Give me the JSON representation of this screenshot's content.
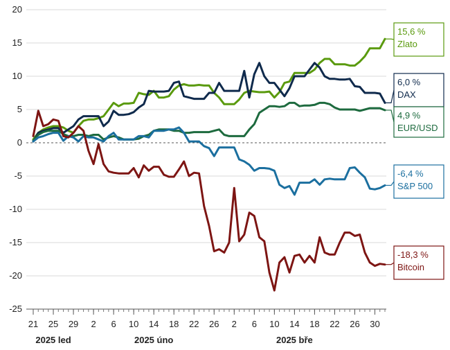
{
  "chart_data": {
    "type": "line",
    "title": "",
    "xlabel": "",
    "ylabel": "",
    "ylim": [
      -25,
      20
    ],
    "yticks": [
      20,
      15,
      10,
      5,
      0,
      -5,
      -10,
      -15,
      -20,
      -25
    ],
    "xlim": [
      "2025-01-21",
      "2025-04-01"
    ],
    "grid": "horizontal",
    "zero_line": "dashed",
    "legend": "end-of-line labels on the right",
    "x_tick_labels": [
      "21",
      "25",
      "29",
      "2",
      "6",
      "10",
      "14",
      "18",
      "22",
      "26",
      "2",
      "6",
      "10",
      "14",
      "18",
      "22",
      "26",
      "30"
    ],
    "x_ticks": [
      "2025-01-21",
      "2025-01-25",
      "2025-01-29",
      "2025-02-02",
      "2025-02-06",
      "2025-02-10",
      "2025-02-14",
      "2025-02-18",
      "2025-02-22",
      "2025-02-26",
      "2025-03-02",
      "2025-03-06",
      "2025-03-10",
      "2025-03-14",
      "2025-03-18",
      "2025-03-22",
      "2025-03-26",
      "2025-03-30"
    ],
    "month_labels": [
      {
        "text": "2025 led",
        "date": "2025-01-25"
      },
      {
        "text": "2025 úno",
        "date": "2025-02-14"
      },
      {
        "text": "2025 bře",
        "date": "2025-03-14"
      }
    ],
    "series": [
      {
        "name": "Zlato",
        "end_label": "15,6 %",
        "color": "#5a9a0e",
        "x": [
          "2025-01-21",
          "2025-01-22",
          "2025-01-23",
          "2025-01-24",
          "2025-01-25",
          "2025-01-26",
          "2025-01-27",
          "2025-01-28",
          "2025-01-29",
          "2025-01-30",
          "2025-01-31",
          "2025-02-01",
          "2025-02-02",
          "2025-02-03",
          "2025-02-04",
          "2025-02-05",
          "2025-02-06",
          "2025-02-07",
          "2025-02-08",
          "2025-02-09",
          "2025-02-10",
          "2025-02-11",
          "2025-02-12",
          "2025-02-13",
          "2025-02-14",
          "2025-02-15",
          "2025-02-16",
          "2025-02-17",
          "2025-02-18",
          "2025-02-19",
          "2025-02-20",
          "2025-02-21",
          "2025-02-22",
          "2025-02-23",
          "2025-02-24",
          "2025-02-25",
          "2025-02-26",
          "2025-02-27",
          "2025-02-28",
          "2025-03-01",
          "2025-03-02",
          "2025-03-03",
          "2025-03-04",
          "2025-03-05",
          "2025-03-06",
          "2025-03-07",
          "2025-03-08",
          "2025-03-09",
          "2025-03-10",
          "2025-03-11",
          "2025-03-12",
          "2025-03-13",
          "2025-03-14",
          "2025-03-15",
          "2025-03-16",
          "2025-03-17",
          "2025-03-18",
          "2025-03-19",
          "2025-03-20",
          "2025-03-21",
          "2025-03-22",
          "2025-03-23",
          "2025-03-24",
          "2025-03-25",
          "2025-03-26",
          "2025-03-27",
          "2025-03-28",
          "2025-03-29",
          "2025-03-30",
          "2025-03-31",
          "2025-04-01"
        ],
        "y": [
          0.5,
          1.5,
          2.0,
          2.3,
          2.5,
          2.5,
          2.3,
          1.8,
          1.5,
          2.5,
          3.3,
          3.5,
          3.5,
          3.7,
          4.0,
          5.0,
          6.0,
          5.5,
          5.9,
          5.9,
          6.0,
          7.5,
          7.3,
          7.2,
          7.8,
          6.8,
          6.8,
          7.0,
          8.0,
          8.6,
          8.8,
          8.6,
          8.6,
          8.7,
          8.6,
          8.6,
          7.5,
          6.8,
          5.8,
          5.8,
          5.8,
          6.5,
          7.5,
          7.8,
          7.7,
          7.6,
          7.6,
          7.7,
          6.8,
          7.6,
          9.0,
          9.2,
          10.5,
          10.5,
          10.5,
          10.5,
          11.0,
          12.0,
          12.6,
          12.6,
          11.8,
          11.8,
          11.8,
          11.6,
          11.6,
          12.2,
          13.0,
          14.2,
          14.2,
          14.2,
          15.6
        ]
      },
      {
        "name": "DAX",
        "end_label": "6,0 %",
        "color": "#0f2a4c",
        "x": [
          "2025-01-21",
          "2025-01-22",
          "2025-01-23",
          "2025-01-24",
          "2025-01-25",
          "2025-01-26",
          "2025-01-27",
          "2025-01-28",
          "2025-01-29",
          "2025-01-30",
          "2025-01-31",
          "2025-02-01",
          "2025-02-02",
          "2025-02-03",
          "2025-02-04",
          "2025-02-05",
          "2025-02-06",
          "2025-02-07",
          "2025-02-08",
          "2025-02-09",
          "2025-02-10",
          "2025-02-11",
          "2025-02-12",
          "2025-02-13",
          "2025-02-14",
          "2025-02-15",
          "2025-02-16",
          "2025-02-17",
          "2025-02-18",
          "2025-02-19",
          "2025-02-20",
          "2025-02-21",
          "2025-02-22",
          "2025-02-23",
          "2025-02-24",
          "2025-02-25",
          "2025-02-26",
          "2025-02-27",
          "2025-02-28",
          "2025-03-01",
          "2025-03-02",
          "2025-03-03",
          "2025-03-04",
          "2025-03-05",
          "2025-03-06",
          "2025-03-07",
          "2025-03-08",
          "2025-03-09",
          "2025-03-10",
          "2025-03-11",
          "2025-03-12",
          "2025-03-13",
          "2025-03-14",
          "2025-03-15",
          "2025-03-16",
          "2025-03-17",
          "2025-03-18",
          "2025-03-19",
          "2025-03-20",
          "2025-03-21",
          "2025-03-22",
          "2025-03-23",
          "2025-03-24",
          "2025-03-25",
          "2025-03-26",
          "2025-03-27",
          "2025-03-28",
          "2025-03-29",
          "2025-03-30",
          "2025-03-31",
          "2025-04-01"
        ],
        "y": [
          0.2,
          1.5,
          1.8,
          2.0,
          2.2,
          2.2,
          1.5,
          2.0,
          2.5,
          3.5,
          4.0,
          4.0,
          4.0,
          4.0,
          2.5,
          3.2,
          4.8,
          4.2,
          4.2,
          4.3,
          4.6,
          5.3,
          5.8,
          7.8,
          7.7,
          7.7,
          7.7,
          7.8,
          9.0,
          9.2,
          7.0,
          6.8,
          6.6,
          6.6,
          6.6,
          7.5,
          7.5,
          9.0,
          7.8,
          7.8,
          7.8,
          7.8,
          10.8,
          6.8,
          10.3,
          12.0,
          10.0,
          9.0,
          9.0,
          8.0,
          7.0,
          8.2,
          10.0,
          10.0,
          10.0,
          11.0,
          12.0,
          11.3,
          10.0,
          9.6,
          9.6,
          9.5,
          9.5,
          9.6,
          8.5,
          8.4,
          7.5,
          7.5,
          7.5,
          7.4,
          6.0
        ]
      },
      {
        "name": "EUR/USD",
        "end_label": "4,9 %",
        "color": "#1d6a3e",
        "x": [
          "2025-01-21",
          "2025-01-22",
          "2025-01-23",
          "2025-01-24",
          "2025-01-25",
          "2025-01-26",
          "2025-01-27",
          "2025-01-28",
          "2025-01-29",
          "2025-01-30",
          "2025-01-31",
          "2025-02-01",
          "2025-02-02",
          "2025-02-03",
          "2025-02-04",
          "2025-02-05",
          "2025-02-06",
          "2025-02-07",
          "2025-02-08",
          "2025-02-09",
          "2025-02-10",
          "2025-02-11",
          "2025-02-12",
          "2025-02-13",
          "2025-02-14",
          "2025-02-15",
          "2025-02-16",
          "2025-02-17",
          "2025-02-18",
          "2025-02-19",
          "2025-02-20",
          "2025-02-21",
          "2025-02-22",
          "2025-02-23",
          "2025-02-24",
          "2025-02-25",
          "2025-02-26",
          "2025-02-27",
          "2025-02-28",
          "2025-03-01",
          "2025-03-02",
          "2025-03-03",
          "2025-03-04",
          "2025-03-05",
          "2025-03-06",
          "2025-03-07",
          "2025-03-08",
          "2025-03-09",
          "2025-03-10",
          "2025-03-11",
          "2025-03-12",
          "2025-03-13",
          "2025-03-14",
          "2025-03-15",
          "2025-03-16",
          "2025-03-17",
          "2025-03-18",
          "2025-03-19",
          "2025-03-20",
          "2025-03-21",
          "2025-03-22",
          "2025-03-23",
          "2025-03-24",
          "2025-03-25",
          "2025-03-26",
          "2025-03-27",
          "2025-03-28",
          "2025-03-29",
          "2025-03-30",
          "2025-03-31",
          "2025-04-01"
        ],
        "y": [
          0.3,
          1.2,
          1.6,
          1.8,
          1.8,
          1.8,
          1.3,
          1.0,
          1.0,
          1.2,
          1.2,
          1.0,
          1.2,
          1.2,
          0.5,
          0.8,
          1.0,
          0.8,
          0.5,
          0.5,
          0.5,
          0.6,
          1.0,
          1.2,
          1.8,
          2.0,
          2.0,
          2.0,
          1.8,
          1.8,
          1.5,
          1.5,
          1.6,
          1.6,
          1.6,
          1.6,
          1.8,
          2.0,
          1.2,
          1.0,
          1.0,
          1.0,
          1.0,
          2.0,
          2.8,
          4.5,
          5.0,
          5.5,
          5.5,
          5.4,
          5.5,
          6.0,
          6.0,
          5.5,
          5.6,
          5.6,
          5.7,
          6.0,
          6.0,
          5.8,
          5.3,
          5.0,
          5.0,
          5.0,
          5.0,
          4.8,
          5.0,
          5.2,
          5.2,
          5.2,
          4.9
        ]
      },
      {
        "name": "S&P 500",
        "end_label": "-6,4 %",
        "color": "#1b6f9f",
        "x": [
          "2025-01-21",
          "2025-01-22",
          "2025-01-23",
          "2025-01-24",
          "2025-01-25",
          "2025-01-26",
          "2025-01-27",
          "2025-01-28",
          "2025-01-29",
          "2025-01-30",
          "2025-01-31",
          "2025-02-01",
          "2025-02-02",
          "2025-02-03",
          "2025-02-04",
          "2025-02-05",
          "2025-02-06",
          "2025-02-07",
          "2025-02-08",
          "2025-02-09",
          "2025-02-10",
          "2025-02-11",
          "2025-02-12",
          "2025-02-13",
          "2025-02-14",
          "2025-02-15",
          "2025-02-16",
          "2025-02-17",
          "2025-02-18",
          "2025-02-19",
          "2025-02-20",
          "2025-02-21",
          "2025-02-22",
          "2025-02-23",
          "2025-02-24",
          "2025-02-25",
          "2025-02-26",
          "2025-02-27",
          "2025-02-28",
          "2025-03-01",
          "2025-03-02",
          "2025-03-03",
          "2025-03-04",
          "2025-03-05",
          "2025-03-06",
          "2025-03-07",
          "2025-03-08",
          "2025-03-09",
          "2025-03-10",
          "2025-03-11",
          "2025-03-12",
          "2025-03-13",
          "2025-03-14",
          "2025-03-15",
          "2025-03-16",
          "2025-03-17",
          "2025-03-18",
          "2025-03-19",
          "2025-03-20",
          "2025-03-21",
          "2025-03-22",
          "2025-03-23",
          "2025-03-24",
          "2025-03-25",
          "2025-03-26",
          "2025-03-27",
          "2025-03-28",
          "2025-03-29",
          "2025-03-30",
          "2025-03-31",
          "2025-04-01"
        ],
        "y": [
          0.2,
          0.8,
          1.0,
          1.3,
          1.5,
          1.5,
          0.3,
          1.0,
          0.8,
          0.2,
          1.0,
          0.8,
          0.8,
          0.5,
          0.2,
          1.0,
          1.5,
          0.5,
          0.5,
          0.5,
          0.5,
          1.0,
          1.0,
          0.8,
          1.8,
          1.8,
          1.8,
          2.0,
          2.0,
          2.3,
          1.5,
          0.2,
          0.2,
          0.2,
          -0.5,
          -0.8,
          -2.0,
          -0.7,
          -0.7,
          -0.7,
          -0.7,
          -2.5,
          -2.8,
          -3.3,
          -4.2,
          -3.8,
          -3.8,
          -3.9,
          -4.2,
          -6.3,
          -6.8,
          -6.5,
          -7.8,
          -6.0,
          -6.0,
          -6.0,
          -5.5,
          -6.3,
          -5.5,
          -5.4,
          -5.5,
          -5.5,
          -5.5,
          -3.8,
          -3.7,
          -4.5,
          -5.2,
          -6.9,
          -7.0,
          -6.8,
          -6.4
        ]
      },
      {
        "name": "Bitcoin",
        "end_label": "-18,3 %",
        "color": "#7d1513",
        "x": [
          "2025-01-21",
          "2025-01-22",
          "2025-01-23",
          "2025-01-24",
          "2025-01-25",
          "2025-01-26",
          "2025-01-27",
          "2025-01-28",
          "2025-01-29",
          "2025-01-30",
          "2025-01-31",
          "2025-02-01",
          "2025-02-02",
          "2025-02-03",
          "2025-02-04",
          "2025-02-05",
          "2025-02-06",
          "2025-02-07",
          "2025-02-08",
          "2025-02-09",
          "2025-02-10",
          "2025-02-11",
          "2025-02-12",
          "2025-02-13",
          "2025-02-14",
          "2025-02-15",
          "2025-02-16",
          "2025-02-17",
          "2025-02-18",
          "2025-02-19",
          "2025-02-20",
          "2025-02-21",
          "2025-02-22",
          "2025-02-23",
          "2025-02-24",
          "2025-02-25",
          "2025-02-26",
          "2025-02-27",
          "2025-02-28",
          "2025-03-01",
          "2025-03-02",
          "2025-03-03",
          "2025-03-04",
          "2025-03-05",
          "2025-03-06",
          "2025-03-07",
          "2025-03-08",
          "2025-03-09",
          "2025-03-10",
          "2025-03-11",
          "2025-03-12",
          "2025-03-13",
          "2025-03-14",
          "2025-03-15",
          "2025-03-16",
          "2025-03-17",
          "2025-03-18",
          "2025-03-19",
          "2025-03-20",
          "2025-03-21",
          "2025-03-22",
          "2025-03-23",
          "2025-03-24",
          "2025-03-25",
          "2025-03-26",
          "2025-03-27",
          "2025-03-28",
          "2025-03-29",
          "2025-03-30",
          "2025-03-31",
          "2025-04-01"
        ],
        "y": [
          1.0,
          4.8,
          2.5,
          2.8,
          3.5,
          3.3,
          1.0,
          0.8,
          1.5,
          2.5,
          1.8,
          -1.2,
          -3.2,
          -0.2,
          -3.2,
          -4.3,
          -4.5,
          -4.6,
          -4.6,
          -4.6,
          -3.8,
          -5.2,
          -3.4,
          -4.2,
          -3.6,
          -3.6,
          -4.8,
          -5.1,
          -5.1,
          -4.0,
          -2.8,
          -5.0,
          -4.5,
          -4.6,
          -9.5,
          -12.5,
          -16.3,
          -16.0,
          -16.5,
          -15.0,
          -6.8,
          -14.8,
          -13.8,
          -10.5,
          -11.0,
          -14.2,
          -14.8,
          -19.5,
          -22.2,
          -18.0,
          -17.2,
          -19.5,
          -17.0,
          -16.8,
          -18.0,
          -17.0,
          -18.0,
          -14.2,
          -16.5,
          -16.8,
          -16.8,
          -15.0,
          -13.5,
          -13.5,
          -14.0,
          -13.8,
          -16.5,
          -18.0,
          -18.5,
          -18.2,
          -18.3
        ]
      }
    ]
  }
}
